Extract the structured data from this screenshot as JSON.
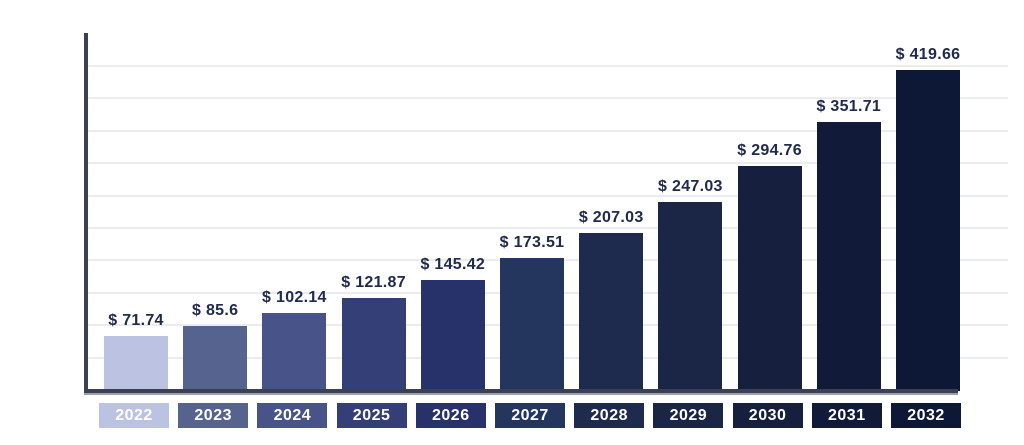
{
  "chart_data": {
    "type": "bar",
    "title": "",
    "xlabel": "",
    "ylabel": "",
    "categories": [
      "2022",
      "2023",
      "2024",
      "2025",
      "2026",
      "2027",
      "2028",
      "2029",
      "2030",
      "2031",
      "2032"
    ],
    "values": [
      71.74,
      85.6,
      102.14,
      121.87,
      145.42,
      173.51,
      207.03,
      247.03,
      294.76,
      351.71,
      419.66
    ],
    "value_labels": [
      "$ 71.74",
      "$ 85.6",
      "$ 102.14",
      "$ 121.87",
      "$ 145.42",
      "$ 173.51",
      "$ 207.03",
      "$ 247.03",
      "$ 294.76",
      "$ 351.71",
      "$ 419.66"
    ],
    "currency_prefix": "$",
    "bar_colors": [
      "#BCC3E2",
      "#56638F",
      "#485489",
      "#333F76",
      "#27316A",
      "#24365E",
      "#1E2A4E",
      "#1B2546",
      "#16203E",
      "#111A38",
      "#0D1736"
    ],
    "ylim": [
      0,
      440
    ],
    "grid": true,
    "gridline_count": 10,
    "legend": "none",
    "colors": {
      "background": "#FFFFFF",
      "axis": "#3B4054",
      "axis_shadow": "#9DA1AF",
      "gridline": "#EBECF1",
      "value_label_text": "#202A4C",
      "tick_text": "#FFFFFF"
    }
  }
}
